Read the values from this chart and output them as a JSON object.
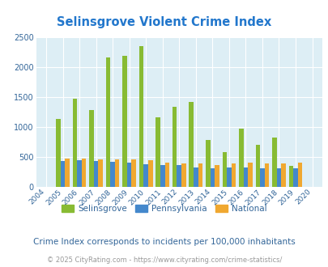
{
  "title": "Selinsgrove Violent Crime Index",
  "years": [
    "2004",
    "2005",
    "2006",
    "2007",
    "2008",
    "2009",
    "2010",
    "2011",
    "2012",
    "2013",
    "2014",
    "2015",
    "2016",
    "2017",
    "2018",
    "2019",
    "2020"
  ],
  "selinsgrove": [
    0,
    1130,
    1480,
    1280,
    2170,
    2190,
    2350,
    1160,
    1340,
    1420,
    780,
    580,
    975,
    700,
    820,
    350,
    0
  ],
  "pennsylvania": [
    0,
    430,
    440,
    430,
    415,
    400,
    380,
    365,
    360,
    330,
    310,
    325,
    320,
    315,
    310,
    305,
    0
  ],
  "national": [
    0,
    470,
    470,
    460,
    460,
    460,
    440,
    400,
    390,
    390,
    370,
    390,
    410,
    390,
    390,
    400,
    0
  ],
  "selinsgrove_color": "#88bb33",
  "pennsylvania_color": "#4488cc",
  "national_color": "#f0a830",
  "bg_color": "#ddeef5",
  "title_color": "#2277cc",
  "ylim": [
    0,
    2500
  ],
  "yticks": [
    0,
    500,
    1000,
    1500,
    2000,
    2500
  ],
  "subtitle": "Crime Index corresponds to incidents per 100,000 inhabitants",
  "footer": "© 2025 CityRating.com - https://www.cityrating.com/crime-statistics/",
  "legend_labels": [
    "Selinsgrove",
    "Pennsylvania",
    "National"
  ],
  "bar_width": 0.27
}
